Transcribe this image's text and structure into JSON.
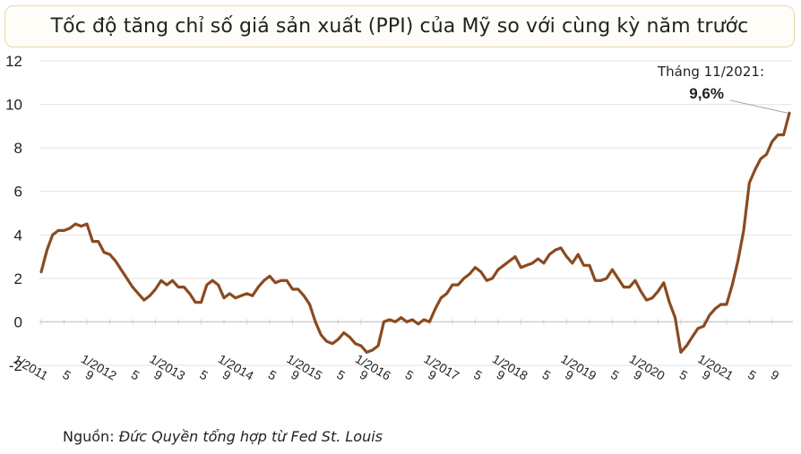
{
  "title": "Tốc độ tăng chỉ số giá sản xuất (PPI) của Mỹ so với cùng kỳ năm trước",
  "source": {
    "label": "Nguồn:",
    "text": "Đức Quyền tổng hợp từ Fed St. Louis"
  },
  "colors": {
    "line": "#8b4a1f",
    "grid": "#e3e3e3",
    "axis": "#d0d0d0",
    "text": "#222222"
  },
  "chart_data": {
    "type": "line",
    "title": "Tốc độ tăng chỉ số giá sản xuất (PPI) của Mỹ so với cùng kỳ năm trước",
    "xlabel": "",
    "ylabel": "",
    "ylim": [
      -2,
      12
    ],
    "yticks": [
      "-2",
      "0",
      "2",
      "4",
      "6",
      "8",
      "10",
      "12"
    ],
    "grid": true,
    "x_start": "1/2011",
    "x_end": "11/2021",
    "x_tick_labels": [
      "1/2011",
      "5",
      "9",
      "1/2012",
      "5",
      "9",
      "1/2013",
      "5",
      "9",
      "1/2014",
      "5",
      "9",
      "1/2015",
      "5",
      "9",
      "1/2016",
      "5",
      "9",
      "1/2017",
      "5",
      "9",
      "1/2018",
      "5",
      "9",
      "1/2019",
      "5",
      "9",
      "1/2020",
      "5",
      "9",
      "1/2021",
      "5",
      "9"
    ],
    "series": [
      {
        "values": [
          2.3,
          3.3,
          4.0,
          4.2,
          4.2,
          4.3,
          4.5,
          4.4,
          4.5,
          3.7,
          3.7,
          3.2,
          3.1,
          2.8,
          2.4,
          2.0,
          1.6,
          1.3,
          1.0,
          1.2,
          1.5,
          1.9,
          1.7,
          1.9,
          1.6,
          1.6,
          1.3,
          0.9,
          0.9,
          1.7,
          1.9,
          1.7,
          1.1,
          1.3,
          1.1,
          1.2,
          1.3,
          1.2,
          1.6,
          1.9,
          2.1,
          1.8,
          1.9,
          1.9,
          1.5,
          1.5,
          1.2,
          0.8,
          0.0,
          -0.6,
          -0.9,
          -1.0,
          -0.8,
          -0.5,
          -0.7,
          -1.0,
          -1.1,
          -1.4,
          -1.3,
          -1.1,
          0.0,
          0.1,
          0.0,
          0.2,
          0.0,
          0.1,
          -0.1,
          0.1,
          0.0,
          0.6,
          1.1,
          1.3,
          1.7,
          1.7,
          2.0,
          2.2,
          2.5,
          2.3,
          1.9,
          2.0,
          2.4,
          2.6,
          2.8,
          3.0,
          2.5,
          2.6,
          2.7,
          2.9,
          2.7,
          3.1,
          3.3,
          3.4,
          3.0,
          2.7,
          3.1,
          2.6,
          2.6,
          1.9,
          1.9,
          2.0,
          2.4,
          2.0,
          1.6,
          1.6,
          1.9,
          1.4,
          1.0,
          1.1,
          1.4,
          1.8,
          0.9,
          0.2,
          -1.4,
          -1.1,
          -0.7,
          -0.3,
          -0.2,
          0.3,
          0.6,
          0.8,
          0.8,
          1.7,
          2.8,
          4.2,
          6.4,
          7.0,
          7.5,
          7.7,
          8.3,
          8.6,
          8.6,
          9.6
        ]
      }
    ],
    "annotation": {
      "label": "Tháng 11/2021:",
      "value": "9,6%"
    }
  }
}
